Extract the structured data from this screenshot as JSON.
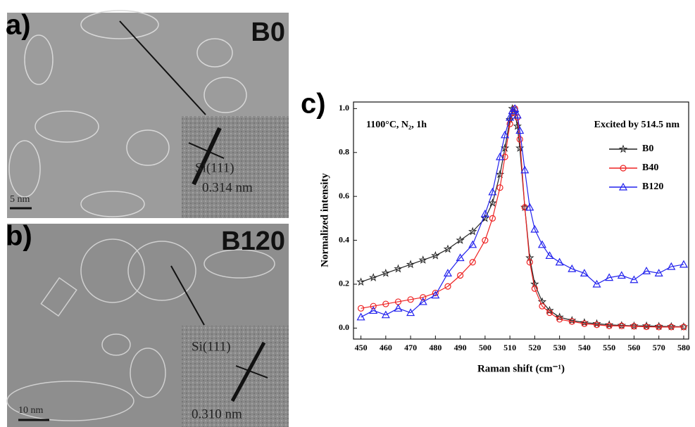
{
  "panels": [
    {
      "label": "a)",
      "sample": "B0",
      "plane": "Si(111)",
      "spacing": "0.314 nm",
      "scale_bar": "5 nm"
    },
    {
      "label": "b)",
      "sample": "B120",
      "plane": "Si(111)",
      "spacing": "0.310 nm",
      "scale_bar": "10 nm"
    }
  ],
  "chart_data": {
    "type": "line",
    "panel_label": "c)",
    "annotations": [
      "1100°C, N₂, 1h",
      "Excited by 514.5 nm"
    ],
    "x_label": "Raman shift (cm⁻¹)",
    "y_label": "Normalized intensity",
    "x": [
      450,
      455,
      460,
      465,
      470,
      475,
      480,
      485,
      490,
      495,
      500,
      503,
      506,
      508,
      510,
      511,
      512,
      513,
      514,
      516,
      518,
      520,
      523,
      526,
      530,
      535,
      540,
      545,
      550,
      555,
      560,
      565,
      570,
      575,
      580
    ],
    "series": [
      {
        "name": "B0",
        "color": "#222222",
        "marker": "star",
        "values": [
          0.21,
          0.23,
          0.25,
          0.27,
          0.29,
          0.31,
          0.33,
          0.36,
          0.4,
          0.44,
          0.5,
          0.57,
          0.7,
          0.82,
          0.95,
          1.0,
          0.98,
          0.92,
          0.82,
          0.55,
          0.32,
          0.2,
          0.12,
          0.08,
          0.05,
          0.035,
          0.025,
          0.02,
          0.015,
          0.012,
          0.01,
          0.01,
          0.008,
          0.007,
          0.006
        ]
      },
      {
        "name": "B40",
        "color": "#ee2222",
        "marker": "circle",
        "values": [
          0.09,
          0.1,
          0.11,
          0.12,
          0.13,
          0.14,
          0.16,
          0.19,
          0.24,
          0.3,
          0.4,
          0.5,
          0.64,
          0.78,
          0.93,
          0.98,
          1.0,
          0.96,
          0.86,
          0.55,
          0.3,
          0.18,
          0.1,
          0.07,
          0.04,
          0.03,
          0.02,
          0.015,
          0.01,
          0.01,
          0.008,
          0.006,
          0.005,
          0.005,
          0.005
        ]
      },
      {
        "name": "B120",
        "color": "#2222ee",
        "marker": "triangle",
        "values": [
          0.05,
          0.08,
          0.06,
          0.09,
          0.07,
          0.12,
          0.15,
          0.25,
          0.32,
          0.38,
          0.52,
          0.62,
          0.78,
          0.88,
          0.96,
          0.99,
          1.0,
          0.97,
          0.9,
          0.72,
          0.55,
          0.45,
          0.38,
          0.33,
          0.3,
          0.27,
          0.25,
          0.2,
          0.23,
          0.24,
          0.22,
          0.26,
          0.25,
          0.28,
          0.29
        ]
      }
    ],
    "xlim": [
      447,
      582
    ],
    "xticks": [
      450,
      460,
      470,
      480,
      490,
      500,
      510,
      520,
      530,
      540,
      550,
      560,
      570,
      580
    ],
    "ylim": [
      -0.05,
      1.03
    ],
    "yticks": [
      {
        "value": 0,
        "label": "0.0"
      },
      0.2,
      0.4,
      0.6,
      0.8,
      {
        "value": 1,
        "label": "1.0"
      }
    ]
  }
}
